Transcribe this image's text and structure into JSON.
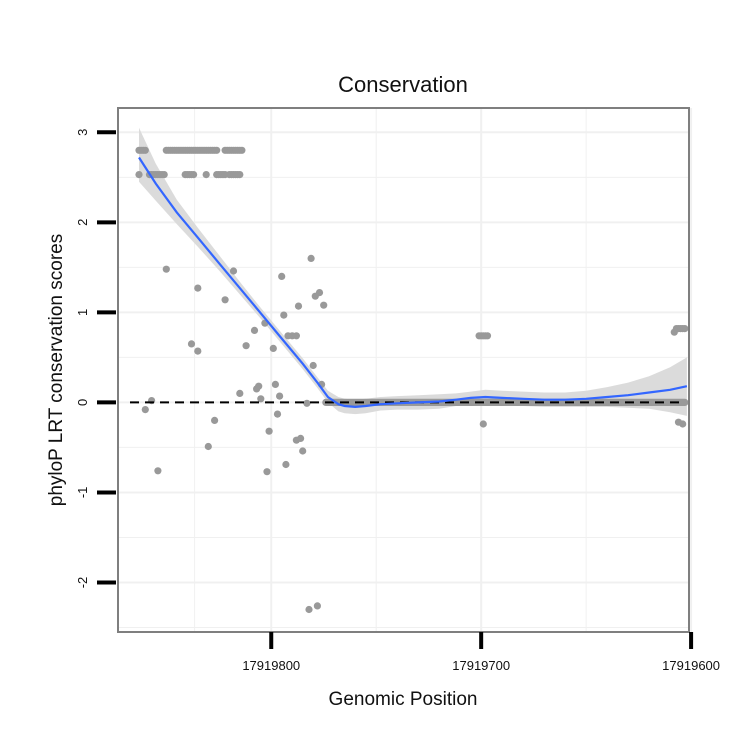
{
  "chart_data": {
    "type": "scatter",
    "title": "Conservation",
    "xlabel": "Genomic Position",
    "ylabel": "phyloP LRT conservation scores",
    "x_reversed": true,
    "xlim": [
      17919873,
      17919601
    ],
    "ylim": [
      -2.55,
      3.27
    ],
    "x_ticks": [
      17919800,
      17919700,
      17919600
    ],
    "x_tick_labels": [
      "17919800",
      "17919700",
      "17919600"
    ],
    "y_ticks": [
      -2,
      -1,
      0,
      1,
      2,
      3
    ],
    "y_tick_labels": [
      "-2",
      "-1",
      "0",
      "1",
      "2",
      "3"
    ],
    "grid": true,
    "reference_line": {
      "y": 0,
      "style": "dashed"
    },
    "colors": {
      "points": "#999999",
      "smooth": "#3366ff",
      "band": "#d9d9d9",
      "reference": "#000000",
      "grid": "#f0f0f0",
      "panel_border": "#7f7f7f"
    },
    "series": [
      {
        "name": "phyloP score",
        "kind": "points",
        "points": [
          [
            17919863,
            2.8
          ],
          [
            17919862,
            2.8
          ],
          [
            17919861,
            2.8
          ],
          [
            17919860,
            2.8
          ],
          [
            17919850,
            2.8
          ],
          [
            17919849,
            2.8
          ],
          [
            17919848,
            2.8
          ],
          [
            17919847,
            2.8
          ],
          [
            17919846,
            2.8
          ],
          [
            17919845,
            2.8
          ],
          [
            17919844,
            2.8
          ],
          [
            17919843,
            2.8
          ],
          [
            17919842,
            2.8
          ],
          [
            17919841,
            2.8
          ],
          [
            17919840,
            2.8
          ],
          [
            17919839,
            2.8
          ],
          [
            17919838,
            2.8
          ],
          [
            17919837,
            2.8
          ],
          [
            17919836,
            2.8
          ],
          [
            17919835,
            2.8
          ],
          [
            17919834,
            2.8
          ],
          [
            17919833,
            2.8
          ],
          [
            17919832,
            2.8
          ],
          [
            17919831,
            2.8
          ],
          [
            17919830,
            2.8
          ],
          [
            17919829,
            2.8
          ],
          [
            17919828,
            2.8
          ],
          [
            17919827,
            2.8
          ],
          [
            17919826,
            2.8
          ],
          [
            17919822,
            2.8
          ],
          [
            17919821,
            2.8
          ],
          [
            17919820,
            2.8
          ],
          [
            17919819,
            2.8
          ],
          [
            17919818,
            2.8
          ],
          [
            17919817,
            2.8
          ],
          [
            17919816,
            2.8
          ],
          [
            17919815,
            2.8
          ],
          [
            17919814,
            2.8
          ],
          [
            17919863,
            2.53
          ],
          [
            17919858,
            2.53
          ],
          [
            17919857,
            2.53
          ],
          [
            17919856,
            2.53
          ],
          [
            17919855,
            2.53
          ],
          [
            17919854,
            2.53
          ],
          [
            17919853,
            2.53
          ],
          [
            17919852,
            2.53
          ],
          [
            17919851,
            2.53
          ],
          [
            17919841,
            2.53
          ],
          [
            17919840,
            2.53
          ],
          [
            17919839,
            2.53
          ],
          [
            17919838,
            2.53
          ],
          [
            17919837,
            2.53
          ],
          [
            17919831,
            2.53
          ],
          [
            17919826,
            2.53
          ],
          [
            17919825,
            2.53
          ],
          [
            17919824,
            2.53
          ],
          [
            17919823,
            2.53
          ],
          [
            17919822,
            2.53
          ],
          [
            17919820,
            2.53
          ],
          [
            17919819,
            2.53
          ],
          [
            17919818,
            2.53
          ],
          [
            17919817,
            2.53
          ],
          [
            17919816,
            2.53
          ],
          [
            17919815,
            2.53
          ],
          [
            17919857,
            0.02
          ],
          [
            17919860,
            -0.08
          ],
          [
            17919854,
            -0.76
          ],
          [
            17919850,
            1.48
          ],
          [
            17919838,
            0.65
          ],
          [
            17919835,
            0.57
          ],
          [
            17919835,
            1.27
          ],
          [
            17919830,
            -0.49
          ],
          [
            17919827,
            -0.2
          ],
          [
            17919822,
            1.14
          ],
          [
            17919818,
            1.46
          ],
          [
            17919815,
            0.1
          ],
          [
            17919812,
            0.63
          ],
          [
            17919808,
            0.8
          ],
          [
            17919807,
            0.15
          ],
          [
            17919806,
            0.18
          ],
          [
            17919805,
            0.04
          ],
          [
            17919803,
            0.88
          ],
          [
            17919802,
            -0.77
          ],
          [
            17919801,
            -0.32
          ],
          [
            17919799,
            0.6
          ],
          [
            17919798,
            0.2
          ],
          [
            17919797,
            -0.13
          ],
          [
            17919796,
            0.07
          ],
          [
            17919795,
            1.4
          ],
          [
            17919794,
            0.97
          ],
          [
            17919793,
            -0.69
          ],
          [
            17919792,
            0.74
          ],
          [
            17919790,
            0.74
          ],
          [
            17919788,
            0.74
          ],
          [
            17919788,
            -0.42
          ],
          [
            17919787,
            1.07
          ],
          [
            17919786,
            -0.4
          ],
          [
            17919785,
            -0.54
          ],
          [
            17919783,
            -0.01
          ],
          [
            17919782,
            -2.3
          ],
          [
            17919781,
            1.6
          ],
          [
            17919780,
            0.41
          ],
          [
            17919779,
            1.18
          ],
          [
            17919778,
            -2.26
          ],
          [
            17919777,
            1.22
          ],
          [
            17919776,
            0.2
          ],
          [
            17919775,
            1.08
          ],
          [
            17919701,
            0.74
          ],
          [
            17919700,
            0.74
          ],
          [
            17919699,
            0.74
          ],
          [
            17919698,
            0.74
          ],
          [
            17919697,
            0.74
          ],
          [
            17919699,
            -0.24
          ],
          [
            17919608,
            0.78
          ],
          [
            17919607,
            0.82
          ],
          [
            17919606,
            0.82
          ],
          [
            17919605,
            0.82
          ],
          [
            17919604,
            0.82
          ],
          [
            17919603,
            0.82
          ],
          [
            17919606,
            -0.22
          ],
          [
            17919604,
            -0.24
          ]
        ],
        "zero_run": {
          "from": 17919774,
          "to": 17919603,
          "y": 0
        }
      },
      {
        "name": "smoothed fit",
        "kind": "line",
        "x": [
          17919863,
          17919855,
          17919845,
          17919835,
          17919825,
          17919815,
          17919805,
          17919795,
          17919785,
          17919778,
          17919773,
          17919768,
          17919765,
          17919760,
          17919755,
          17919748,
          17919740,
          17919730,
          17919720,
          17919712,
          17919705,
          17919698,
          17919690,
          17919680,
          17919670,
          17919660,
          17919650,
          17919640,
          17919630,
          17919620,
          17919610,
          17919602
        ],
        "y": [
          2.72,
          2.43,
          2.11,
          1.83,
          1.55,
          1.27,
          0.99,
          0.71,
          0.43,
          0.22,
          0.06,
          -0.02,
          -0.04,
          -0.05,
          -0.04,
          -0.02,
          -0.01,
          0,
          0.01,
          0.03,
          0.05,
          0.06,
          0.05,
          0.04,
          0.03,
          0.03,
          0.04,
          0.06,
          0.08,
          0.11,
          0.14,
          0.18
        ],
        "band_lower": [
          2.45,
          2.24,
          1.98,
          1.73,
          1.47,
          1.2,
          0.93,
          0.65,
          0.37,
          0.16,
          0.0,
          -0.1,
          -0.12,
          -0.13,
          -0.12,
          -0.09,
          -0.08,
          -0.08,
          -0.07,
          -0.04,
          -0.02,
          -0.01,
          -0.03,
          -0.04,
          -0.05,
          -0.05,
          -0.05,
          -0.05,
          -0.06,
          -0.07,
          -0.11,
          -0.15
        ],
        "band_upper": [
          3.05,
          2.65,
          2.25,
          1.94,
          1.64,
          1.34,
          1.05,
          0.77,
          0.49,
          0.28,
          0.13,
          0.06,
          0.04,
          0.03,
          0.04,
          0.06,
          0.07,
          0.08,
          0.09,
          0.1,
          0.12,
          0.14,
          0.13,
          0.12,
          0.11,
          0.11,
          0.13,
          0.17,
          0.22,
          0.29,
          0.39,
          0.5
        ]
      }
    ]
  }
}
